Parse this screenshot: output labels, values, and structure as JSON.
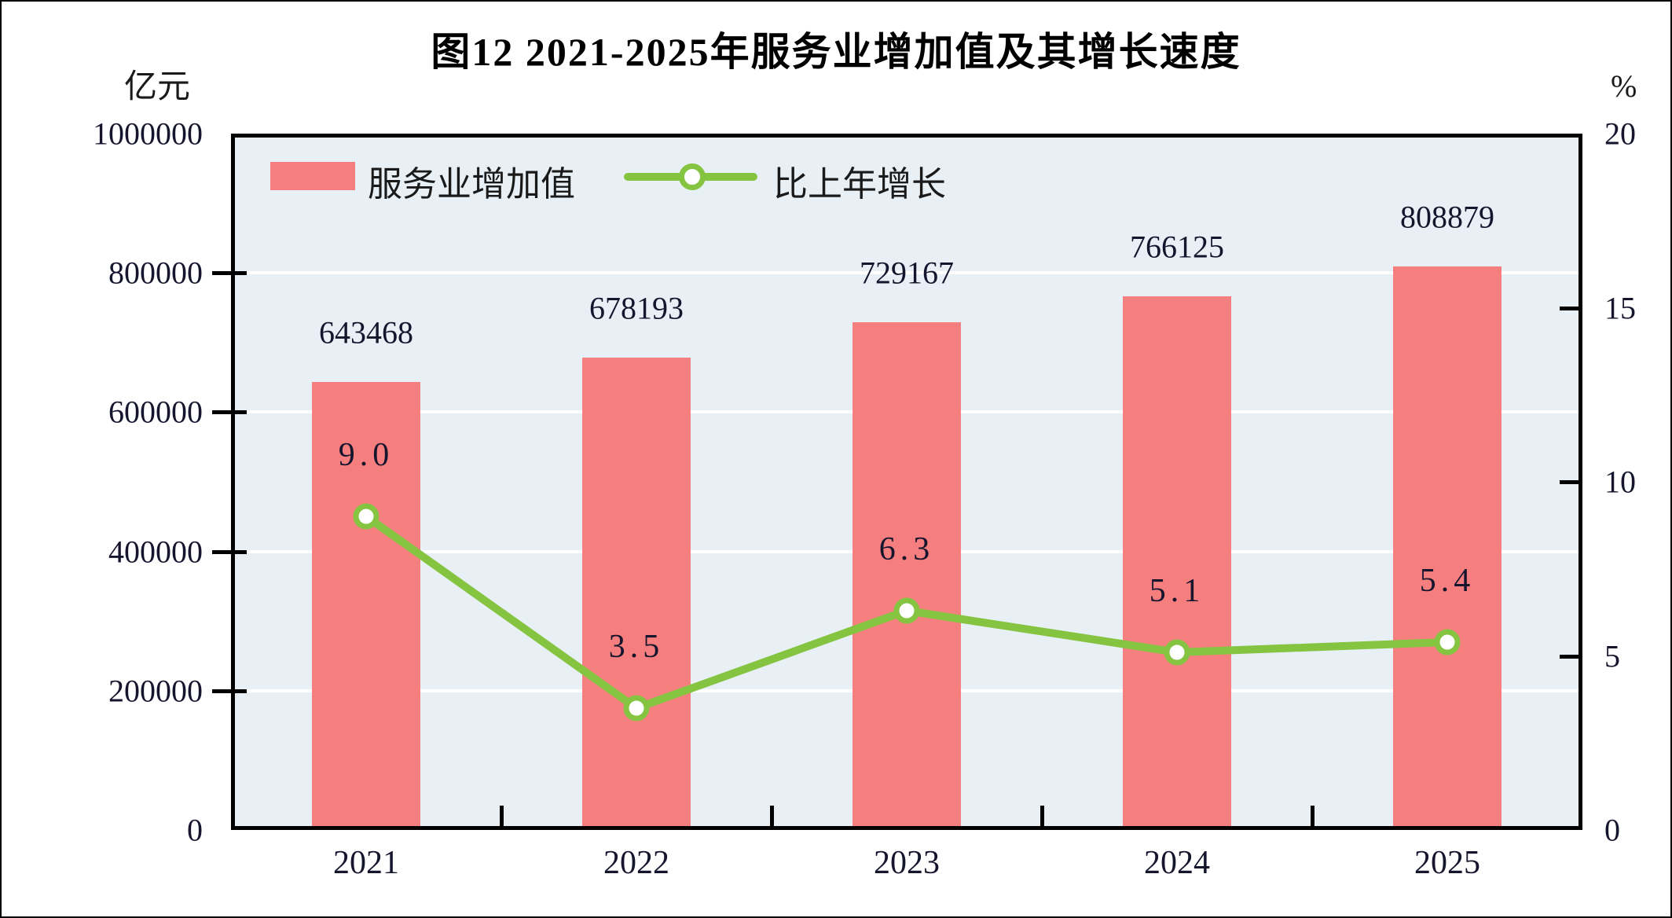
{
  "title": "图12  2021-2025年服务业增加值及其增长速度",
  "left_axis": {
    "unit": "亿元",
    "tick_labels": [
      "1000000",
      "800000",
      "600000",
      "400000",
      "200000",
      "0"
    ]
  },
  "right_axis": {
    "unit": "%",
    "tick_labels": [
      "20",
      "15",
      "10",
      "5",
      "0"
    ]
  },
  "legend": {
    "bar_label": "服务业增加值",
    "line_label": "比上年增长"
  },
  "chart_data": {
    "type": "bar+line combo",
    "title": "图12  2021-2025年服务业增加值及其增长速度",
    "categories": [
      "2021",
      "2022",
      "2023",
      "2024",
      "2025"
    ],
    "series": [
      {
        "name": "服务业增加值",
        "type": "bar",
        "axis": "left",
        "unit": "亿元",
        "values": [
          643468,
          678193,
          729167,
          766125,
          808879
        ],
        "value_labels": [
          "643468",
          "678193",
          "729167",
          "766125",
          "808879"
        ]
      },
      {
        "name": "比上年增长",
        "type": "line",
        "axis": "right",
        "unit": "%",
        "values": [
          9.0,
          3.5,
          6.3,
          5.1,
          5.4
        ],
        "value_labels": [
          "9.0",
          "3.5",
          "6.3",
          "5.1",
          "5.4"
        ]
      }
    ],
    "left_ylim": [
      0,
      1000000
    ],
    "left_tick_step": 200000,
    "right_ylim": [
      0,
      20
    ],
    "right_tick_step": 5,
    "grid": true,
    "legend_position": "top-left-inside"
  },
  "colors": {
    "bar": "#F57E7E",
    "line": "#85C440",
    "marker_fill": "#FFFFFF",
    "plot_background": "#E8F0F5",
    "gridline": "#FFFFFF",
    "axis_frame": "#000000",
    "text": "#15152E"
  }
}
